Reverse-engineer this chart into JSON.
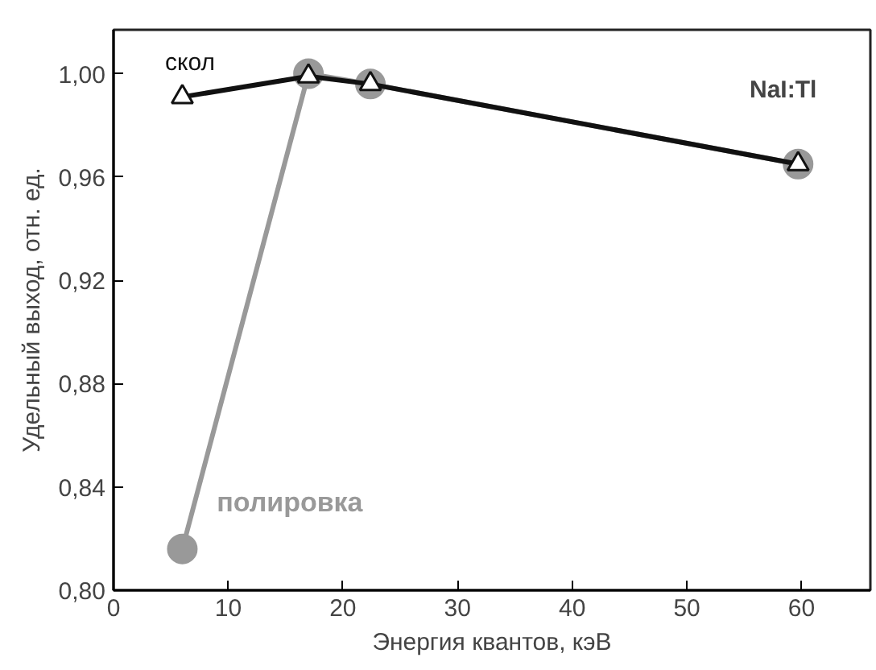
{
  "chart_data": {
    "type": "line",
    "xlabel": "Энергия квантов, кэВ",
    "ylabel": "Удельный выход, отн. ед.",
    "xlim": [
      0,
      66
    ],
    "ylim": [
      0.8,
      1.017
    ],
    "xticks": [
      0,
      10,
      20,
      30,
      40,
      50,
      60
    ],
    "yticks": [
      {
        "value": 0.8,
        "label": "0,80"
      },
      {
        "value": 0.84,
        "label": "0,84"
      },
      {
        "value": 0.88,
        "label": "0,88"
      },
      {
        "value": 0.92,
        "label": "0,92"
      },
      {
        "value": 0.96,
        "label": "0,96"
      },
      {
        "value": 1.0,
        "label": "1,00"
      }
    ],
    "grid": false,
    "series": [
      {
        "name": "полировка",
        "color": "#999999",
        "marker": "circle",
        "x": [
          6,
          17,
          22.4,
          59.7
        ],
        "values": [
          0.816,
          1.0,
          0.996,
          0.965
        ]
      },
      {
        "name": "скол",
        "color": "#111111",
        "marker": "triangle",
        "x": [
          6,
          17,
          22.4,
          59.7
        ],
        "values": [
          0.991,
          0.999,
          0.996,
          0.965
        ]
      }
    ],
    "annotations": [
      "NaI:Tl"
    ]
  }
}
